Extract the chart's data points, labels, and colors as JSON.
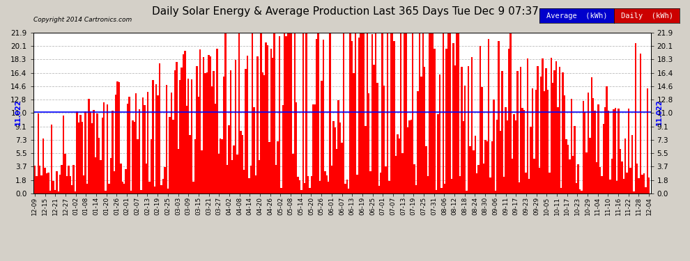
{
  "title": "Daily Solar Energy & Average Production Last 365 Days Tue Dec 9 07:37",
  "copyright": "Copyright 2014 Cartronics.com",
  "average_value": 11.022,
  "average_label": "11.022",
  "ylim": [
    0.0,
    21.9
  ],
  "yticks": [
    0.0,
    1.8,
    3.7,
    5.5,
    7.3,
    9.1,
    11.0,
    12.8,
    14.6,
    16.4,
    18.3,
    20.1,
    21.9
  ],
  "bar_color": "#ff0000",
  "average_line_color": "#0000ff",
  "background_color": "#d4d0c8",
  "plot_bg_color": "#ffffff",
  "grid_color": "#aaaaaa",
  "title_fontsize": 11,
  "legend_avg_bg": "#0000cc",
  "legend_daily_bg": "#cc0000",
  "x_tick_labels": [
    "12-09",
    "12-15",
    "12-21",
    "12-27",
    "01-02",
    "01-08",
    "01-14",
    "01-20",
    "01-26",
    "02-01",
    "02-07",
    "02-13",
    "02-19",
    "02-25",
    "03-03",
    "03-09",
    "03-15",
    "03-21",
    "03-27",
    "04-02",
    "04-08",
    "04-14",
    "04-20",
    "04-26",
    "05-02",
    "05-08",
    "05-14",
    "05-20",
    "05-26",
    "06-01",
    "06-07",
    "06-13",
    "06-19",
    "06-25",
    "07-01",
    "07-07",
    "07-13",
    "07-19",
    "07-25",
    "07-31",
    "08-06",
    "08-12",
    "08-18",
    "08-24",
    "08-30",
    "09-06",
    "09-11",
    "09-17",
    "09-23",
    "09-29",
    "10-05",
    "10-11",
    "10-17",
    "10-23",
    "10-29",
    "11-04",
    "11-10",
    "11-16",
    "11-22",
    "11-28",
    "12-04"
  ],
  "num_bars": 365
}
